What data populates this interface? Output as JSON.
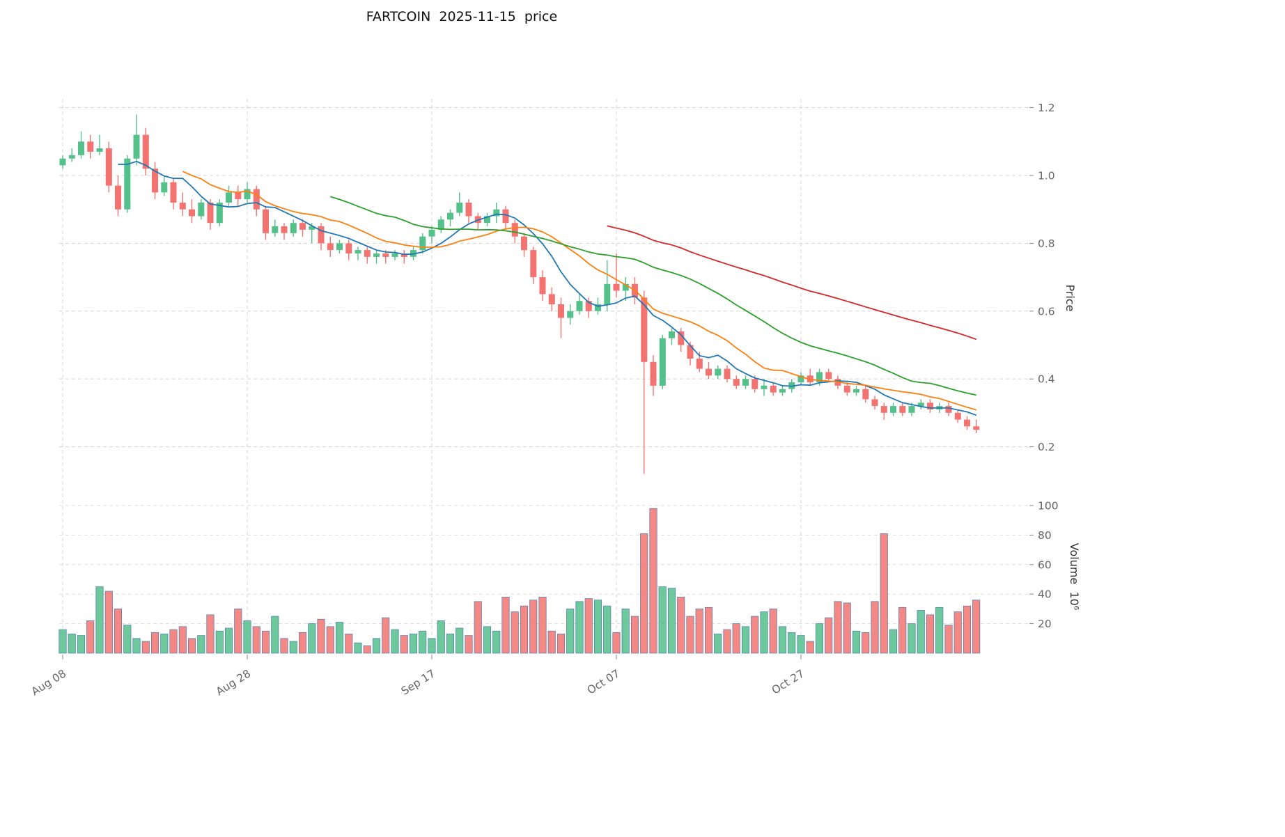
{
  "chart_data": {
    "type": "candlestick",
    "title": "FARTCOIN  2025-11-15  price",
    "start_date": "2025-08-08",
    "end_date": "2025-11-15",
    "frequency": "daily",
    "num_candles": 100,
    "ylabel_price": "Price",
    "ylabel_volume": "Volume  10⁶",
    "price_ylim": [
      0.08,
      1.23
    ],
    "volume_ylim": [
      0,
      106
    ],
    "price_ticks": [
      0.2,
      0.4,
      0.6,
      0.8,
      1.0,
      1.2
    ],
    "volume_ticks": [
      20,
      40,
      60,
      80,
      100
    ],
    "x_ticks": [
      {
        "index": 0,
        "label": "Aug 08"
      },
      {
        "index": 20,
        "label": "Aug 28"
      },
      {
        "index": 40,
        "label": "Sep 17"
      },
      {
        "index": 60,
        "label": "Oct 07"
      },
      {
        "index": 80,
        "label": "Oct 27"
      }
    ],
    "moving_averages": [
      {
        "window": 7,
        "color": "#1f77b4"
      },
      {
        "window": 14,
        "color": "#ff7f0e"
      },
      {
        "window": 30,
        "color": "#2ca02c"
      },
      {
        "window": 60,
        "color": "#d62728"
      }
    ],
    "colors": {
      "up": "#54c08a",
      "down": "#f27370",
      "volume_edge": "#4a7bb0",
      "grid": "#d4d4d4",
      "tick_text": "#666666"
    },
    "grid": true,
    "open": [
      1.03,
      1.05,
      1.06,
      1.1,
      1.07,
      1.08,
      0.97,
      0.9,
      1.05,
      1.12,
      1.02,
      0.95,
      0.98,
      0.92,
      0.9,
      0.88,
      0.92,
      0.86,
      0.92,
      0.95,
      0.93,
      0.96,
      0.9,
      0.83,
      0.85,
      0.83,
      0.86,
      0.84,
      0.85,
      0.8,
      0.78,
      0.8,
      0.77,
      0.78,
      0.76,
      0.77,
      0.76,
      0.77,
      0.76,
      0.78,
      0.82,
      0.84,
      0.87,
      0.89,
      0.92,
      0.88,
      0.86,
      0.88,
      0.9,
      0.86,
      0.82,
      0.78,
      0.7,
      0.65,
      0.62,
      0.58,
      0.6,
      0.63,
      0.6,
      0.62,
      0.68,
      0.66,
      0.68,
      0.64,
      0.45,
      0.38,
      0.52,
      0.54,
      0.5,
      0.46,
      0.43,
      0.41,
      0.43,
      0.4,
      0.38,
      0.4,
      0.37,
      0.38,
      0.36,
      0.37,
      0.39,
      0.41,
      0.39,
      0.42,
      0.4,
      0.38,
      0.36,
      0.37,
      0.34,
      0.32,
      0.3,
      0.32,
      0.3,
      0.32,
      0.33,
      0.31,
      0.32,
      0.3,
      0.28,
      0.26
    ],
    "high": [
      1.06,
      1.08,
      1.13,
      1.12,
      1.12,
      1.1,
      1.0,
      1.06,
      1.18,
      1.14,
      1.04,
      1.0,
      0.99,
      0.95,
      0.93,
      0.93,
      0.93,
      0.93,
      0.97,
      0.97,
      0.98,
      0.97,
      0.91,
      0.87,
      0.86,
      0.87,
      0.87,
      0.86,
      0.86,
      0.82,
      0.81,
      0.81,
      0.79,
      0.79,
      0.78,
      0.78,
      0.78,
      0.78,
      0.79,
      0.83,
      0.85,
      0.88,
      0.9,
      0.95,
      0.93,
      0.89,
      0.89,
      0.92,
      0.91,
      0.87,
      0.83,
      0.79,
      0.72,
      0.67,
      0.64,
      0.62,
      0.65,
      0.64,
      0.64,
      0.75,
      0.77,
      0.7,
      0.7,
      0.66,
      0.47,
      0.53,
      0.55,
      0.55,
      0.51,
      0.48,
      0.45,
      0.44,
      0.44,
      0.41,
      0.41,
      0.41,
      0.4,
      0.39,
      0.38,
      0.4,
      0.42,
      0.43,
      0.43,
      0.43,
      0.41,
      0.39,
      0.38,
      0.38,
      0.35,
      0.33,
      0.33,
      0.33,
      0.33,
      0.34,
      0.34,
      0.33,
      0.33,
      0.31,
      0.29,
      0.28
    ],
    "low": [
      1.02,
      1.04,
      1.05,
      1.05,
      1.06,
      0.95,
      0.88,
      0.89,
      1.03,
      1.0,
      0.93,
      0.94,
      0.9,
      0.88,
      0.86,
      0.87,
      0.84,
      0.85,
      0.91,
      0.91,
      0.92,
      0.88,
      0.81,
      0.82,
      0.81,
      0.82,
      0.82,
      0.8,
      0.78,
      0.76,
      0.77,
      0.75,
      0.75,
      0.74,
      0.74,
      0.74,
      0.75,
      0.74,
      0.75,
      0.77,
      0.8,
      0.83,
      0.85,
      0.88,
      0.86,
      0.84,
      0.85,
      0.86,
      0.84,
      0.8,
      0.76,
      0.68,
      0.63,
      0.6,
      0.52,
      0.56,
      0.59,
      0.58,
      0.59,
      0.6,
      0.64,
      0.63,
      0.62,
      0.12,
      0.35,
      0.37,
      0.5,
      0.48,
      0.44,
      0.42,
      0.4,
      0.4,
      0.39,
      0.37,
      0.37,
      0.36,
      0.35,
      0.35,
      0.35,
      0.36,
      0.38,
      0.38,
      0.38,
      0.39,
      0.37,
      0.35,
      0.35,
      0.33,
      0.31,
      0.28,
      0.29,
      0.29,
      0.29,
      0.31,
      0.3,
      0.3,
      0.29,
      0.27,
      0.25,
      0.24
    ],
    "close": [
      1.05,
      1.06,
      1.1,
      1.07,
      1.08,
      0.97,
      0.9,
      1.05,
      1.12,
      1.02,
      0.95,
      0.98,
      0.92,
      0.9,
      0.88,
      0.92,
      0.86,
      0.92,
      0.95,
      0.93,
      0.96,
      0.9,
      0.83,
      0.85,
      0.83,
      0.86,
      0.84,
      0.85,
      0.8,
      0.78,
      0.8,
      0.77,
      0.78,
      0.76,
      0.77,
      0.76,
      0.77,
      0.76,
      0.78,
      0.82,
      0.84,
      0.87,
      0.89,
      0.92,
      0.88,
      0.86,
      0.88,
      0.9,
      0.86,
      0.82,
      0.78,
      0.7,
      0.65,
      0.62,
      0.58,
      0.6,
      0.63,
      0.6,
      0.62,
      0.68,
      0.66,
      0.68,
      0.64,
      0.45,
      0.38,
      0.52,
      0.54,
      0.5,
      0.46,
      0.43,
      0.41,
      0.43,
      0.4,
      0.38,
      0.4,
      0.37,
      0.38,
      0.36,
      0.37,
      0.39,
      0.41,
      0.39,
      0.42,
      0.4,
      0.38,
      0.36,
      0.37,
      0.34,
      0.32,
      0.3,
      0.32,
      0.3,
      0.32,
      0.33,
      0.31,
      0.32,
      0.3,
      0.28,
      0.26,
      0.25
    ],
    "volume_millions": [
      16,
      13,
      12,
      22,
      45,
      42,
      30,
      19,
      10,
      8,
      14,
      13,
      16,
      18,
      10,
      12,
      26,
      15,
      17,
      30,
      22,
      18,
      15,
      25,
      10,
      8,
      14,
      20,
      23,
      18,
      21,
      13,
      7,
      5,
      10,
      24,
      16,
      12,
      13,
      15,
      10,
      22,
      13,
      17,
      12,
      35,
      18,
      15,
      38,
      28,
      32,
      36,
      38,
      15,
      13,
      30,
      35,
      37,
      36,
      32,
      14,
      30,
      25,
      81,
      98,
      45,
      44,
      38,
      25,
      30,
      31,
      13,
      16,
      20,
      18,
      25,
      28,
      30,
      18,
      14,
      12,
      8,
      20,
      24,
      35,
      34,
      15,
      14,
      35,
      81,
      16,
      31,
      20,
      29,
      26,
      31,
      19,
      28,
      32,
      36
    ]
  }
}
